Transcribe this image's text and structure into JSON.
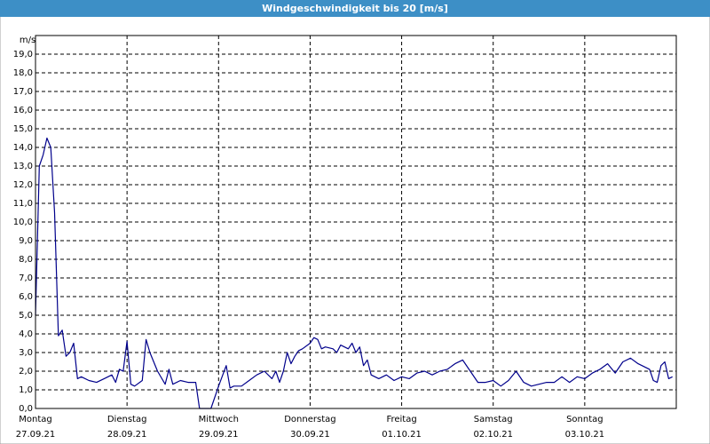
{
  "chart_data": {
    "type": "line",
    "title": "Windgeschwindigkeit bis 20 [m/s]",
    "ylabel": "m/s",
    "color": "#00008b",
    "grid": true,
    "xlim": [
      0,
      168
    ],
    "ylim": [
      0,
      20
    ],
    "xticks": [
      {
        "value": 0,
        "label": "Montag",
        "date": "27.09.21"
      },
      {
        "value": 24,
        "label": "Dienstag",
        "date": "28.09.21"
      },
      {
        "value": 48,
        "label": "Mittwoch",
        "date": "29.09.21"
      },
      {
        "value": 72,
        "label": "Donnerstag",
        "date": "30.09.21"
      },
      {
        "value": 96,
        "label": "Freitag",
        "date": "01.10.21"
      },
      {
        "value": 120,
        "label": "Samstag",
        "date": "02.10.21"
      },
      {
        "value": 144,
        "label": "Sonntag",
        "date": "03.10.21"
      }
    ],
    "yticks": [
      {
        "value": 0,
        "label": "0,0"
      },
      {
        "value": 1,
        "label": "1,0"
      },
      {
        "value": 2,
        "label": "2,0"
      },
      {
        "value": 3,
        "label": "3,0"
      },
      {
        "value": 4,
        "label": "4,0"
      },
      {
        "value": 5,
        "label": "5,0"
      },
      {
        "value": 6,
        "label": "6,0"
      },
      {
        "value": 7,
        "label": "7,0"
      },
      {
        "value": 8,
        "label": "8,0"
      },
      {
        "value": 9,
        "label": "9,0"
      },
      {
        "value": 10,
        "label": "10,0"
      },
      {
        "value": 11,
        "label": "11,0"
      },
      {
        "value": 12,
        "label": "12,0"
      },
      {
        "value": 13,
        "label": "13,0"
      },
      {
        "value": 14,
        "label": "14,0"
      },
      {
        "value": 15,
        "label": "15,0"
      },
      {
        "value": 16,
        "label": "16,0"
      },
      {
        "value": 17,
        "label": "17,0"
      },
      {
        "value": 18,
        "label": "18,0"
      },
      {
        "value": 19,
        "label": "19,0"
      }
    ],
    "x": [
      0,
      1,
      2,
      3,
      4,
      5,
      6,
      7,
      8,
      9,
      10,
      11,
      12,
      14,
      16,
      18,
      20,
      21,
      22,
      23,
      24,
      25,
      26,
      28,
      29,
      30,
      32,
      34,
      35,
      36,
      38,
      40,
      42,
      43,
      44,
      46,
      48,
      50,
      51,
      52,
      54,
      56,
      58,
      60,
      62,
      63,
      64,
      65,
      66,
      67,
      68,
      69,
      70,
      72,
      73,
      74,
      75,
      76,
      78,
      79,
      80,
      82,
      83,
      84,
      85,
      86,
      87,
      88,
      90,
      92,
      94,
      96,
      98,
      100,
      102,
      104,
      106,
      108,
      110,
      112,
      114,
      116,
      118,
      120,
      122,
      124,
      126,
      128,
      130,
      132,
      134,
      136,
      138,
      140,
      142,
      144,
      146,
      148,
      150,
      152,
      154,
      156,
      158,
      160,
      161,
      162,
      163,
      164,
      165,
      166,
      167
    ],
    "values": [
      5.0,
      13.0,
      13.6,
      14.5,
      14.0,
      10.5,
      3.9,
      4.2,
      2.8,
      3.0,
      3.5,
      1.6,
      1.7,
      1.5,
      1.4,
      1.6,
      1.8,
      1.4,
      2.1,
      2.0,
      3.6,
      1.3,
      1.2,
      1.5,
      3.7,
      3.0,
      2.0,
      1.3,
      2.1,
      1.3,
      1.5,
      1.4,
      1.4,
      0.0,
      0.0,
      0.0,
      1.2,
      2.3,
      1.1,
      1.2,
      1.2,
      1.5,
      1.8,
      2.0,
      1.6,
      2.0,
      1.4,
      2.0,
      3.0,
      2.4,
      2.8,
      3.1,
      3.2,
      3.5,
      3.8,
      3.7,
      3.2,
      3.3,
      3.2,
      3.0,
      3.4,
      3.2,
      3.5,
      3.0,
      3.3,
      2.3,
      2.6,
      1.8,
      1.6,
      1.8,
      1.5,
      1.7,
      1.6,
      1.9,
      2.0,
      1.8,
      2.0,
      2.1,
      2.4,
      2.6,
      2.0,
      1.4,
      1.4,
      1.5,
      1.2,
      1.5,
      2.0,
      1.4,
      1.2,
      1.3,
      1.4,
      1.4,
      1.7,
      1.4,
      1.7,
      1.6,
      1.9,
      2.1,
      2.4,
      1.9,
      2.5,
      2.7,
      2.4,
      2.2,
      2.1,
      1.5,
      1.4,
      2.3,
      2.5,
      1.6,
      1.7
    ]
  }
}
